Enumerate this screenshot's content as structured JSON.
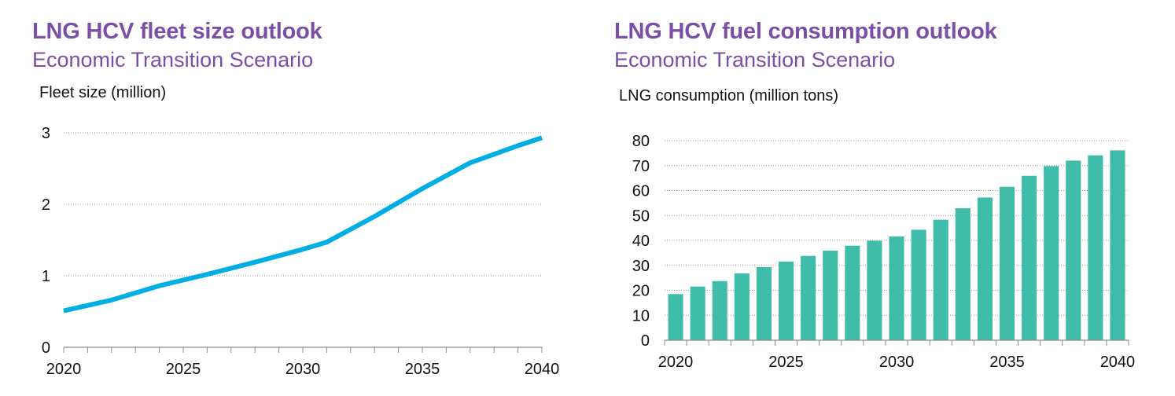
{
  "colors": {
    "title": "#7b4fa6",
    "line": "#00aee6",
    "bar": "#40bdaa",
    "grid": "#9a9a9a",
    "axis": "#8c8c8c",
    "text": "#111111"
  },
  "chart_data": [
    {
      "type": "line",
      "title": "LNG HCV fleet size outlook",
      "subtitle": "Economic Transition Scenario",
      "ylabel": "Fleet size (million)",
      "xlabel": "",
      "x": [
        2020,
        2022,
        2024,
        2026,
        2028,
        2030,
        2031,
        2033,
        2035,
        2037,
        2039,
        2040
      ],
      "series": [
        {
          "values": [
            0.51,
            0.66,
            0.86,
            1.02,
            1.19,
            1.37,
            1.47,
            1.83,
            2.22,
            2.58,
            2.82,
            2.93
          ]
        }
      ],
      "xticks": [
        "2020",
        "2025",
        "2030",
        "2035",
        "2040"
      ],
      "yticks": [
        "0",
        "1",
        "2",
        "3"
      ],
      "xlim": [
        2020,
        2040
      ],
      "ylim": [
        0,
        3
      ],
      "grid": "horizontal-dotted",
      "legend": "none"
    },
    {
      "type": "bar",
      "title": "LNG HCV fuel consumption outlook",
      "subtitle": "Economic Transition Scenario",
      "ylabel": "LNG consumption (million tons)",
      "xlabel": "",
      "categories": [
        2020,
        2021,
        2022,
        2023,
        2024,
        2025,
        2026,
        2027,
        2028,
        2029,
        2030,
        2031,
        2032,
        2033,
        2034,
        2035,
        2036,
        2037,
        2038,
        2039,
        2040
      ],
      "values": [
        18.5,
        21.5,
        23.7,
        26.8,
        29.3,
        31.5,
        33.8,
        35.9,
        37.9,
        39.9,
        41.6,
        44.3,
        48.3,
        52.9,
        57.2,
        61.5,
        65.9,
        69.8,
        72.0,
        74.1,
        76.1
      ],
      "xticks": [
        "2020",
        "2025",
        "2030",
        "2035",
        "2040"
      ],
      "yticks": [
        "0",
        "10",
        "20",
        "30",
        "40",
        "50",
        "60",
        "70",
        "80"
      ],
      "ylim": [
        0,
        80
      ],
      "grid": "horizontal-dotted",
      "legend": "none"
    }
  ]
}
